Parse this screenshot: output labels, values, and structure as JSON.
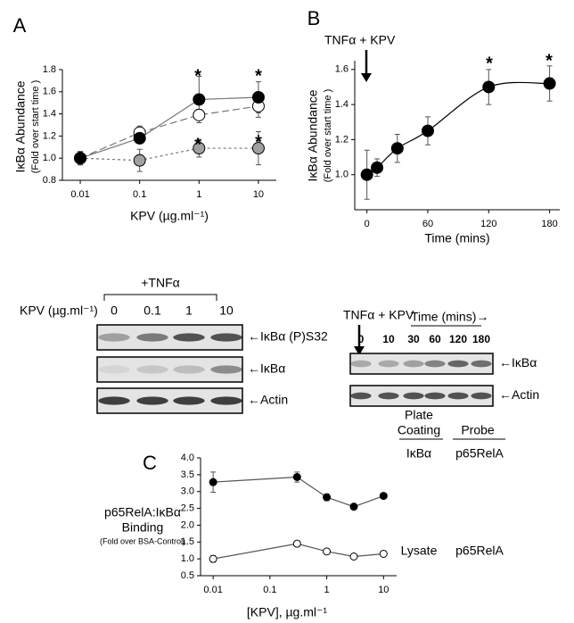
{
  "panel_labels": [
    "A",
    "B",
    "C"
  ],
  "chart_data": [
    {
      "type": "line",
      "xscale": "log",
      "x": [
        0.01,
        0.1,
        1,
        10
      ],
      "xlim": [
        0.005,
        20
      ],
      "xticks": [
        0.01,
        0.1,
        1,
        10
      ],
      "ylim": [
        0.8,
        1.8
      ],
      "yticks": [
        0.8,
        {
          "value": 1,
          "label": "1.0"
        },
        1.2,
        1.4,
        1.6,
        1.8
      ],
      "y_label": [
        "IκBα Abundance",
        "(Fold over start time )"
      ],
      "x_label": "KPV (µg.ml⁻¹)",
      "annotations": [
        "*",
        "*",
        "*",
        "*"
      ],
      "series": [
        {
          "color": "#a0a0a0",
          "line_color": "#777777",
          "line_style": "short-dash",
          "values": [
            1.0,
            0.98,
            1.09,
            1.09
          ],
          "errors": [
            0.06,
            0.1,
            0.08,
            0.15
          ]
        },
        {
          "color": "#ffffff",
          "line_color": "#777777",
          "line_style": "long-dash",
          "values": [
            1.0,
            1.23,
            1.39,
            1.47
          ],
          "errors": [
            0.06,
            0.06,
            0.05,
            0.1
          ]
        },
        {
          "color": "#000000",
          "line_color": "#777777",
          "line_style": "solid",
          "values": [
            1.0,
            1.18,
            1.53,
            1.55
          ],
          "errors": [
            0.06,
            0.02,
            0.21,
            0.14
          ]
        }
      ]
    },
    {
      "type": "line",
      "xscale": "linear",
      "smooth": true,
      "x": [
        0,
        10,
        30,
        60,
        120,
        180
      ],
      "xlim": [
        -12,
        190
      ],
      "xticks": [
        0,
        60,
        120,
        180
      ],
      "ylim": [
        0.8,
        1.65
      ],
      "yticks": [
        {
          "value": 1,
          "label": "1.0"
        },
        1.2,
        1.4,
        1.6
      ],
      "y_label": [
        "IκBα Abundance",
        "(Fold over start time )"
      ],
      "x_label": "Time (mins)",
      "arrow_label": "TNFα + KPV",
      "annotations": [
        "*",
        "*"
      ],
      "series": [
        {
          "color": "#000000",
          "line_color": "#000000",
          "line_style": "solid",
          "values": [
            1.0,
            1.04,
            1.15,
            1.25,
            1.5,
            1.52
          ],
          "errors": [
            0.14,
            0.05,
            0.08,
            0.08,
            0.1,
            0.1
          ]
        }
      ]
    },
    {
      "type": "line",
      "xscale": "log",
      "x": [
        0.01,
        0.3,
        1,
        3,
        10
      ],
      "xlim": [
        0.006,
        17
      ],
      "xticks": [
        0.01,
        0.1,
        1,
        10
      ],
      "ylim": [
        0.5,
        4
      ],
      "yticks": [
        0.5,
        {
          "value": 1,
          "label": "1.0"
        },
        1.5,
        {
          "value": 2,
          "label": "2.0"
        },
        2.5,
        {
          "value": 3,
          "label": "3.0"
        },
        3.5,
        {
          "value": 4,
          "label": "4.0"
        }
      ],
      "y_label": [
        "p65RelA:IκBα",
        "Binding",
        "(Fold over BSA-Control)"
      ],
      "x_label": "[KPV], µg.ml⁻¹",
      "key": {
        "headers": [
          "Plate",
          "Coating",
          "Probe"
        ],
        "rows": [
          [
            "IκBα",
            "p65RelA"
          ],
          [
            "Lysate",
            "p65RelA"
          ]
        ]
      },
      "series": [
        {
          "color": "#000000",
          "line_color": "#555555",
          "line_style": "solid",
          "values": [
            3.28,
            3.43,
            2.83,
            2.55,
            2.87
          ],
          "errors": [
            0.3,
            0.15,
            0.1,
            0.05,
            0.05
          ]
        },
        {
          "color": "#ffffff",
          "line_color": "#555555",
          "line_style": "solid",
          "values": [
            1.0,
            1.45,
            1.22,
            1.07,
            1.15
          ],
          "errors": [
            0.1,
            0.05,
            0.07,
            0.08,
            0.05
          ]
        }
      ]
    }
  ],
  "blot_left": {
    "treatment": "+TNFα",
    "lane_title": "KPV (µg.ml⁻¹)",
    "lanes": [
      "0",
      "0.1",
      "1",
      "10"
    ],
    "rows": [
      "←IκBα (P)S32",
      "←IκBα",
      "←Actin"
    ]
  },
  "blot_right": {
    "treatment": "TNFα + KPV",
    "lane_title": "Time (mins)→",
    "lanes": [
      "0",
      "10",
      "30",
      "60",
      "120",
      "180"
    ],
    "rows": [
      "←IκBα",
      "←Actin"
    ]
  }
}
